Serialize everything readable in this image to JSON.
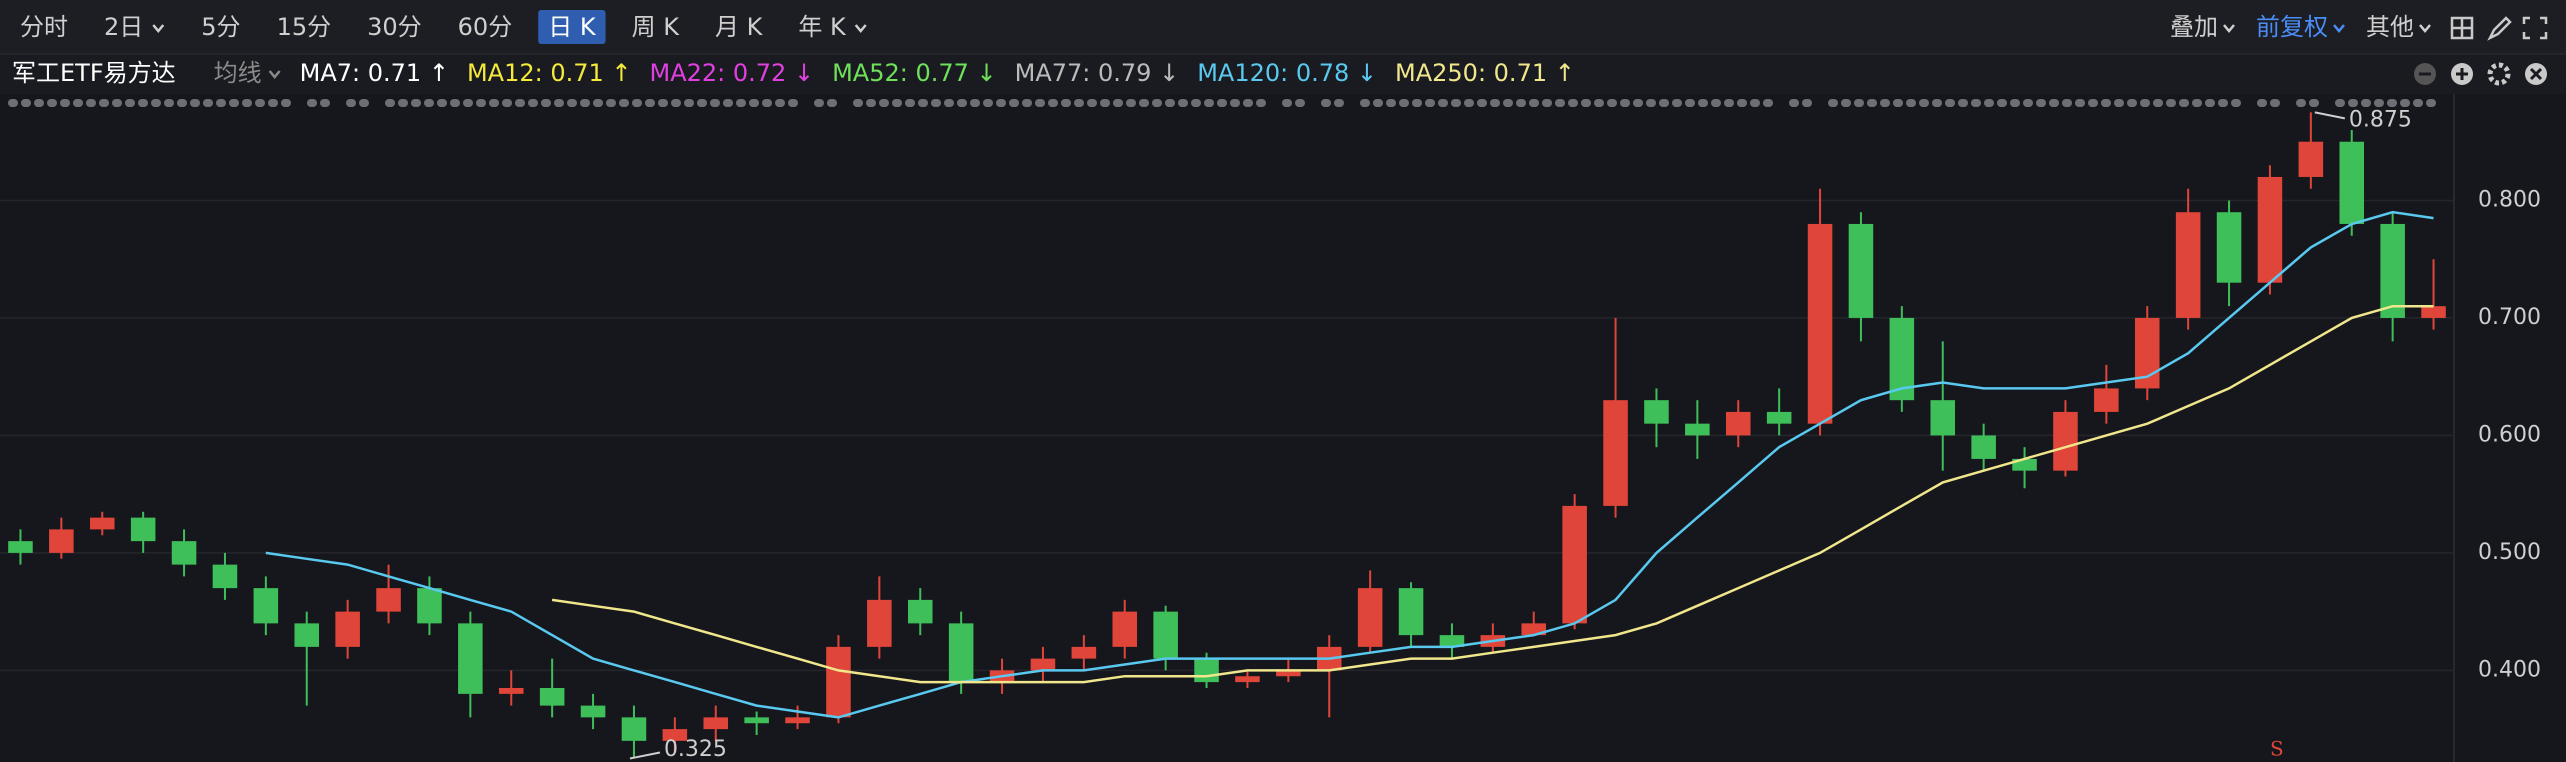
{
  "toolbar": {
    "periods": [
      "分时",
      "2日",
      "5分",
      "15分",
      "30分",
      "60分",
      "日 K",
      "周 K",
      "月 K",
      "年 K"
    ],
    "dropdown_periods": [
      1,
      9
    ],
    "active": 6,
    "right": [
      "叠加",
      "前复权",
      "其他"
    ],
    "right_active": 1
  },
  "legend": {
    "title": "军工ETF易方达",
    "ma_label": "均线",
    "items": [
      {
        "label": "MA7: 0.71 ↑",
        "color": "#ffffff"
      },
      {
        "label": "MA12: 0.71 ↑",
        "color": "#f5e93a"
      },
      {
        "label": "MA22: 0.72 ↓",
        "color": "#e040e0"
      },
      {
        "label": "MA52: 0.77 ↓",
        "color": "#6fe05a"
      },
      {
        "label": "MA77: 0.79 ↓",
        "color": "#bbbbbb"
      },
      {
        "label": "MA120: 0.78 ↓",
        "color": "#59c9f0"
      },
      {
        "label": "MA250: 0.71 ↑",
        "color": "#f0e68c"
      }
    ]
  },
  "chart_data": {
    "type": "candlestick",
    "ylim": [
      0.322,
      0.877
    ],
    "yticks": [
      {
        "value": 0.4,
        "label": "0.400"
      },
      {
        "value": 0.5,
        "label": "0.500"
      },
      {
        "value": 0.6,
        "label": "0.600"
      },
      {
        "value": 0.7,
        "label": "0.700"
      },
      {
        "value": 0.8,
        "label": "0.800"
      }
    ],
    "grid": true,
    "up_color": "#e0453a",
    "down_color": "#3fbf5a",
    "ohlc": [
      [
        0.51,
        0.52,
        0.49,
        0.5
      ],
      [
        0.5,
        0.53,
        0.495,
        0.52
      ],
      [
        0.52,
        0.535,
        0.515,
        0.53
      ],
      [
        0.53,
        0.535,
        0.5,
        0.51
      ],
      [
        0.51,
        0.52,
        0.48,
        0.49
      ],
      [
        0.49,
        0.5,
        0.46,
        0.47
      ],
      [
        0.47,
        0.48,
        0.43,
        0.44
      ],
      [
        0.44,
        0.45,
        0.37,
        0.42
      ],
      [
        0.42,
        0.46,
        0.41,
        0.45
      ],
      [
        0.45,
        0.49,
        0.44,
        0.47
      ],
      [
        0.47,
        0.48,
        0.43,
        0.44
      ],
      [
        0.44,
        0.45,
        0.36,
        0.38
      ],
      [
        0.38,
        0.4,
        0.37,
        0.385
      ],
      [
        0.385,
        0.41,
        0.36,
        0.37
      ],
      [
        0.37,
        0.38,
        0.35,
        0.36
      ],
      [
        0.36,
        0.37,
        0.325,
        0.34
      ],
      [
        0.34,
        0.36,
        0.33,
        0.35
      ],
      [
        0.35,
        0.37,
        0.34,
        0.36
      ],
      [
        0.36,
        0.365,
        0.345,
        0.355
      ],
      [
        0.355,
        0.37,
        0.35,
        0.36
      ],
      [
        0.36,
        0.43,
        0.355,
        0.42
      ],
      [
        0.42,
        0.48,
        0.41,
        0.46
      ],
      [
        0.46,
        0.47,
        0.43,
        0.44
      ],
      [
        0.44,
        0.45,
        0.38,
        0.39
      ],
      [
        0.39,
        0.41,
        0.38,
        0.4
      ],
      [
        0.4,
        0.42,
        0.39,
        0.41
      ],
      [
        0.41,
        0.43,
        0.4,
        0.42
      ],
      [
        0.42,
        0.46,
        0.41,
        0.45
      ],
      [
        0.45,
        0.455,
        0.4,
        0.41
      ],
      [
        0.41,
        0.415,
        0.385,
        0.39
      ],
      [
        0.39,
        0.4,
        0.385,
        0.395
      ],
      [
        0.395,
        0.41,
        0.39,
        0.4
      ],
      [
        0.4,
        0.43,
        0.36,
        0.42
      ],
      [
        0.42,
        0.485,
        0.415,
        0.47
      ],
      [
        0.47,
        0.475,
        0.42,
        0.43
      ],
      [
        0.43,
        0.44,
        0.41,
        0.42
      ],
      [
        0.42,
        0.44,
        0.415,
        0.43
      ],
      [
        0.43,
        0.45,
        0.43,
        0.44
      ],
      [
        0.44,
        0.55,
        0.435,
        0.54
      ],
      [
        0.54,
        0.7,
        0.53,
        0.63
      ],
      [
        0.63,
        0.64,
        0.59,
        0.61
      ],
      [
        0.61,
        0.63,
        0.58,
        0.6
      ],
      [
        0.6,
        0.63,
        0.59,
        0.62
      ],
      [
        0.62,
        0.64,
        0.6,
        0.61
      ],
      [
        0.61,
        0.81,
        0.6,
        0.78
      ],
      [
        0.78,
        0.79,
        0.68,
        0.7
      ],
      [
        0.7,
        0.71,
        0.62,
        0.63
      ],
      [
        0.63,
        0.68,
        0.57,
        0.6
      ],
      [
        0.6,
        0.61,
        0.57,
        0.58
      ],
      [
        0.58,
        0.59,
        0.555,
        0.57
      ],
      [
        0.57,
        0.63,
        0.565,
        0.62
      ],
      [
        0.62,
        0.66,
        0.61,
        0.64
      ],
      [
        0.64,
        0.71,
        0.63,
        0.7
      ],
      [
        0.7,
        0.81,
        0.69,
        0.79
      ],
      [
        0.79,
        0.8,
        0.71,
        0.73
      ],
      [
        0.73,
        0.83,
        0.72,
        0.82
      ],
      [
        0.82,
        0.875,
        0.81,
        0.85
      ],
      [
        0.85,
        0.86,
        0.77,
        0.78
      ],
      [
        0.78,
        0.79,
        0.68,
        0.7
      ],
      [
        0.7,
        0.75,
        0.69,
        0.71
      ]
    ],
    "series": [
      {
        "name": "MA120",
        "color": "#59c9f0",
        "values": [
          null,
          null,
          null,
          null,
          null,
          null,
          0.5,
          0.495,
          0.49,
          0.48,
          0.47,
          0.46,
          0.45,
          0.43,
          0.41,
          0.4,
          0.39,
          0.38,
          0.37,
          0.365,
          0.36,
          0.37,
          0.38,
          0.39,
          0.395,
          0.4,
          0.4,
          0.405,
          0.41,
          0.41,
          0.41,
          0.41,
          0.41,
          0.415,
          0.42,
          0.42,
          0.425,
          0.43,
          0.44,
          0.46,
          0.5,
          0.53,
          0.56,
          0.59,
          0.61,
          0.63,
          0.64,
          0.645,
          0.64,
          0.64,
          0.64,
          0.645,
          0.65,
          0.67,
          0.7,
          0.73,
          0.76,
          0.78,
          0.79,
          0.785
        ]
      },
      {
        "name": "MA250",
        "color": "#f0e68c",
        "values": [
          null,
          null,
          null,
          null,
          null,
          null,
          null,
          null,
          null,
          null,
          null,
          null,
          null,
          0.46,
          0.455,
          0.45,
          0.44,
          0.43,
          0.42,
          0.41,
          0.4,
          0.395,
          0.39,
          0.39,
          0.39,
          0.39,
          0.39,
          0.395,
          0.395,
          0.395,
          0.4,
          0.4,
          0.4,
          0.405,
          0.41,
          0.41,
          0.415,
          0.42,
          0.425,
          0.43,
          0.44,
          0.455,
          0.47,
          0.485,
          0.5,
          0.52,
          0.54,
          0.56,
          0.57,
          0.58,
          0.59,
          0.6,
          0.61,
          0.625,
          0.64,
          0.66,
          0.68,
          0.7,
          0.71,
          0.71
        ]
      }
    ],
    "max_label": 0.875,
    "min_label": 0.325,
    "signals": [
      "S"
    ]
  }
}
